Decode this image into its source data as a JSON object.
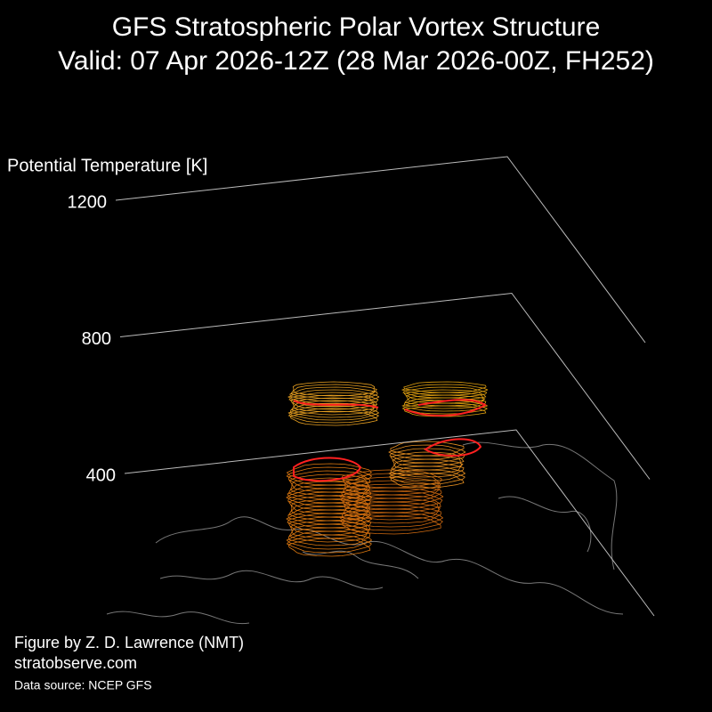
{
  "chart_data": {
    "type": "surface3d",
    "title": "GFS Stratospheric Polar Vortex Structure",
    "subtitle": "Valid: 07 Apr 2026-12Z  (28 Mar 2026-00Z, FH252)",
    "zlabel": "Potential Temperature [K]",
    "zticks": [
      400,
      800,
      1200
    ],
    "grid": true,
    "credit": "Figure by Z. D. Lawrence (NMT)",
    "website": "stratobserve.com",
    "source": "Data source: NCEP GFS"
  }
}
